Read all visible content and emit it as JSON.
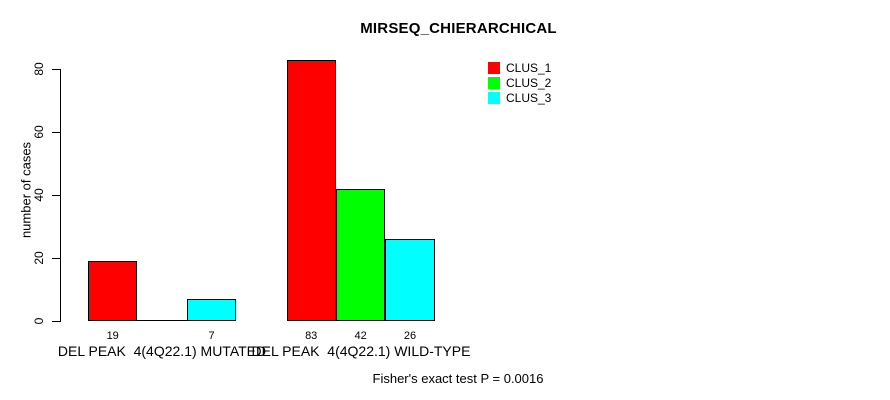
{
  "chart_data": {
    "type": "bar",
    "title": "MIRSEQ_CHIERARCHICAL",
    "xlabel": "",
    "ylabel": "number of cases",
    "ylim": [
      0,
      80
    ],
    "yticks": [
      0,
      20,
      40,
      60,
      80
    ],
    "grid": false,
    "legend_position": "top-right",
    "categories": [
      "DEL PEAK  4(4Q22.1) MUTATED",
      "DEL PEAK  4(4Q22.1) WILD-TYPE"
    ],
    "series": [
      {
        "name": "CLUS_1",
        "color": "#FF0000",
        "values": [
          19,
          83
        ]
      },
      {
        "name": "CLUS_2",
        "color": "#00FF00",
        "values": [
          0,
          42
        ]
      },
      {
        "name": "CLUS_3",
        "color": "#00FFFF",
        "values": [
          7,
          26
        ]
      }
    ],
    "bar_value_labels": [
      [
        "19",
        "",
        "7"
      ],
      [
        "83",
        "42",
        "26"
      ]
    ],
    "annotation": "Fisher's exact test P = 0.0016"
  }
}
